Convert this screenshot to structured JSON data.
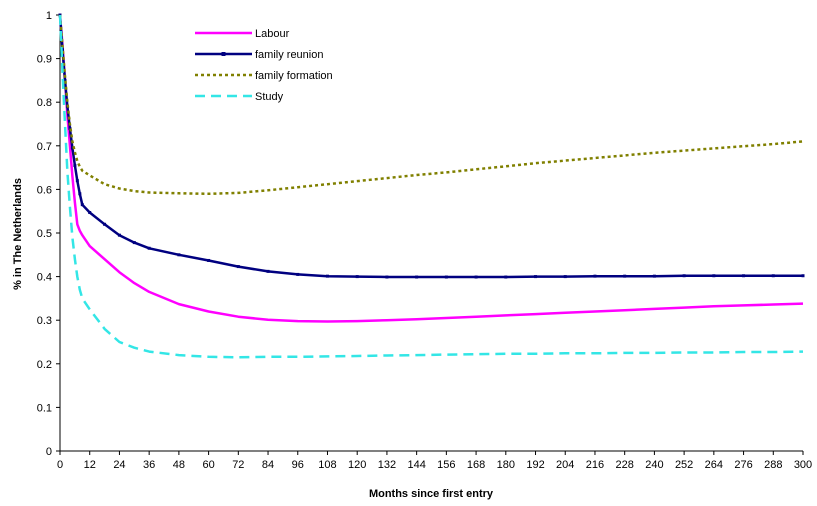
{
  "chart_data": {
    "type": "line",
    "xlabel": "Months since first entry",
    "ylabel": "% in The Netherlands",
    "xlim": [
      0,
      300
    ],
    "ylim": [
      0,
      1
    ],
    "x_ticks": [
      0,
      12,
      24,
      36,
      48,
      60,
      72,
      84,
      96,
      108,
      120,
      132,
      144,
      156,
      168,
      180,
      192,
      204,
      216,
      228,
      240,
      252,
      264,
      276,
      288,
      300
    ],
    "y_ticks": [
      0,
      0.1,
      0.2,
      0.3,
      0.4,
      0.5,
      0.6,
      0.7,
      0.8,
      0.9,
      1
    ],
    "y_tick_labels": [
      "0",
      "0.1",
      "0.2",
      "0.3",
      "0.4",
      "0.5",
      "0.6",
      "0.7",
      "0.8",
      "0.9",
      "1"
    ],
    "grid": false,
    "legend_position": "top-left inside plot",
    "series": [
      {
        "name": "Labour",
        "color": "#FF00FF",
        "style": "solid",
        "x": [
          0,
          1,
          2,
          3,
          4,
          5,
          6,
          7,
          8,
          9,
          12,
          18,
          24,
          30,
          36,
          48,
          60,
          72,
          84,
          96,
          108,
          120,
          132,
          144,
          156,
          168,
          180,
          192,
          204,
          216,
          228,
          240,
          252,
          264,
          276,
          288,
          300
        ],
        "values": [
          1.0,
          0.93,
          0.85,
          0.77,
          0.7,
          0.63,
          0.57,
          0.52,
          0.505,
          0.495,
          0.47,
          0.44,
          0.41,
          0.385,
          0.365,
          0.337,
          0.32,
          0.308,
          0.301,
          0.298,
          0.297,
          0.298,
          0.3,
          0.302,
          0.305,
          0.308,
          0.311,
          0.314,
          0.317,
          0.32,
          0.323,
          0.326,
          0.329,
          0.332,
          0.334,
          0.336,
          0.338
        ]
      },
      {
        "name": "family reunion",
        "color": "#000080",
        "style": "solid-with-markers",
        "x": [
          0,
          1,
          2,
          3,
          4,
          5,
          6,
          7,
          8,
          9,
          12,
          18,
          24,
          30,
          36,
          48,
          60,
          72,
          84,
          96,
          108,
          120,
          132,
          144,
          156,
          168,
          180,
          192,
          204,
          216,
          228,
          240,
          252,
          264,
          276,
          288,
          300
        ],
        "values": [
          1.0,
          0.92,
          0.85,
          0.79,
          0.74,
          0.695,
          0.655,
          0.62,
          0.59,
          0.565,
          0.547,
          0.52,
          0.495,
          0.478,
          0.465,
          0.45,
          0.437,
          0.423,
          0.412,
          0.405,
          0.401,
          0.4,
          0.399,
          0.399,
          0.399,
          0.399,
          0.399,
          0.4,
          0.4,
          0.401,
          0.401,
          0.401,
          0.402,
          0.402,
          0.402,
          0.402,
          0.402
        ]
      },
      {
        "name": "family formation",
        "color": "#808000",
        "style": "dotted",
        "x": [
          0,
          1,
          2,
          3,
          4,
          5,
          6,
          7,
          8,
          9,
          12,
          18,
          24,
          30,
          36,
          48,
          60,
          72,
          84,
          96,
          108,
          120,
          132,
          144,
          156,
          168,
          180,
          192,
          204,
          216,
          228,
          240,
          252,
          264,
          276,
          288,
          300
        ],
        "values": [
          1.0,
          0.93,
          0.86,
          0.8,
          0.75,
          0.71,
          0.685,
          0.665,
          0.652,
          0.643,
          0.632,
          0.612,
          0.602,
          0.596,
          0.593,
          0.591,
          0.59,
          0.592,
          0.598,
          0.605,
          0.612,
          0.619,
          0.626,
          0.633,
          0.639,
          0.646,
          0.653,
          0.66,
          0.666,
          0.672,
          0.678,
          0.684,
          0.689,
          0.694,
          0.699,
          0.704,
          0.71
        ]
      },
      {
        "name": "Study",
        "color": "#33E6E6",
        "style": "dashed",
        "x": [
          0,
          1,
          2,
          3,
          4,
          5,
          6,
          7,
          8,
          9,
          12,
          18,
          24,
          30,
          36,
          48,
          60,
          72,
          84,
          96,
          108,
          120,
          132,
          144,
          156,
          168,
          180,
          192,
          204,
          216,
          228,
          240,
          252,
          264,
          276,
          288,
          300
        ],
        "values": [
          1.0,
          0.87,
          0.75,
          0.64,
          0.56,
          0.49,
          0.44,
          0.4,
          0.37,
          0.35,
          0.325,
          0.28,
          0.25,
          0.237,
          0.228,
          0.22,
          0.216,
          0.215,
          0.216,
          0.216,
          0.217,
          0.218,
          0.219,
          0.22,
          0.221,
          0.222,
          0.223,
          0.223,
          0.224,
          0.224,
          0.225,
          0.225,
          0.226,
          0.226,
          0.227,
          0.227,
          0.228
        ]
      }
    ]
  }
}
